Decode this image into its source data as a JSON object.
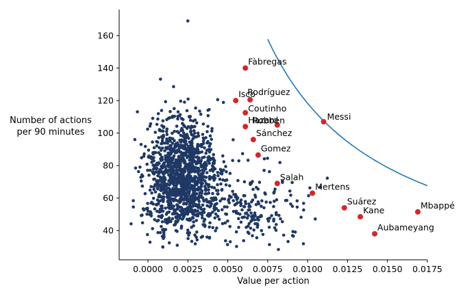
{
  "chart_data": {
    "type": "scatter",
    "title": "",
    "xlabel": "Value per action",
    "ylabel_lines": [
      "Number of actions",
      "per 90 minutes"
    ],
    "xlim": [
      -0.0018,
      0.0175
    ],
    "ylim": [
      22,
      176
    ],
    "xticks": [
      0.0,
      0.0025,
      0.005,
      0.0075,
      0.01,
      0.0125,
      0.015,
      0.0175
    ],
    "xtick_labels": [
      "0.0000",
      "0.0025",
      "0.0050",
      "0.0075",
      "0.0100",
      "0.0125",
      "0.0150",
      "0.0175"
    ],
    "yticks": [
      40,
      60,
      80,
      100,
      120,
      140,
      160
    ],
    "ytick_labels": [
      "40",
      "60",
      "80",
      "100",
      "120",
      "140",
      "160"
    ],
    "grid": false,
    "colors": {
      "background_points": "#1f3864",
      "highlighted_points": "#d62728",
      "curve": "#1f77b4"
    },
    "background_points": {
      "count": 1500,
      "description_center": [
        0.0022,
        75
      ],
      "max_point": [
        0.0025,
        169
      ]
    },
    "highlighted_players": [
      {
        "name": "Fàbregas",
        "x": 0.0061,
        "y": 140
      },
      {
        "name": "Isco",
        "x": 0.0055,
        "y": 120
      },
      {
        "name": "Rodríguez",
        "x": 0.0064,
        "y": 120.5
      },
      {
        "name": "Coutinho",
        "x": 0.0061,
        "y": 112.5
      },
      {
        "name": "Hazard",
        "x": 0.0061,
        "y": 104
      },
      {
        "name": "Robben",
        "x": 0.0081,
        "y": 105
      },
      {
        "name": "Messi",
        "x": 0.011,
        "y": 107
      },
      {
        "name": "Sánchez",
        "x": 0.0066,
        "y": 96
      },
      {
        "name": "Gomez",
        "x": 0.0069,
        "y": 86.5
      },
      {
        "name": "Salah",
        "x": 0.0081,
        "y": 69
      },
      {
        "name": "Mertens",
        "x": 0.0103,
        "y": 63
      },
      {
        "name": "Suárez",
        "x": 0.0123,
        "y": 54
      },
      {
        "name": "Kane",
        "x": 0.0133,
        "y": 48.5
      },
      {
        "name": "Mbappé",
        "x": 0.0169,
        "y": 51.5
      },
      {
        "name": "Aubameyang",
        "x": 0.0142,
        "y": 38
      }
    ],
    "iso_curve": {
      "x_start": 0.0075,
      "x_end": 0.0175,
      "k": 1.1829
    }
  }
}
